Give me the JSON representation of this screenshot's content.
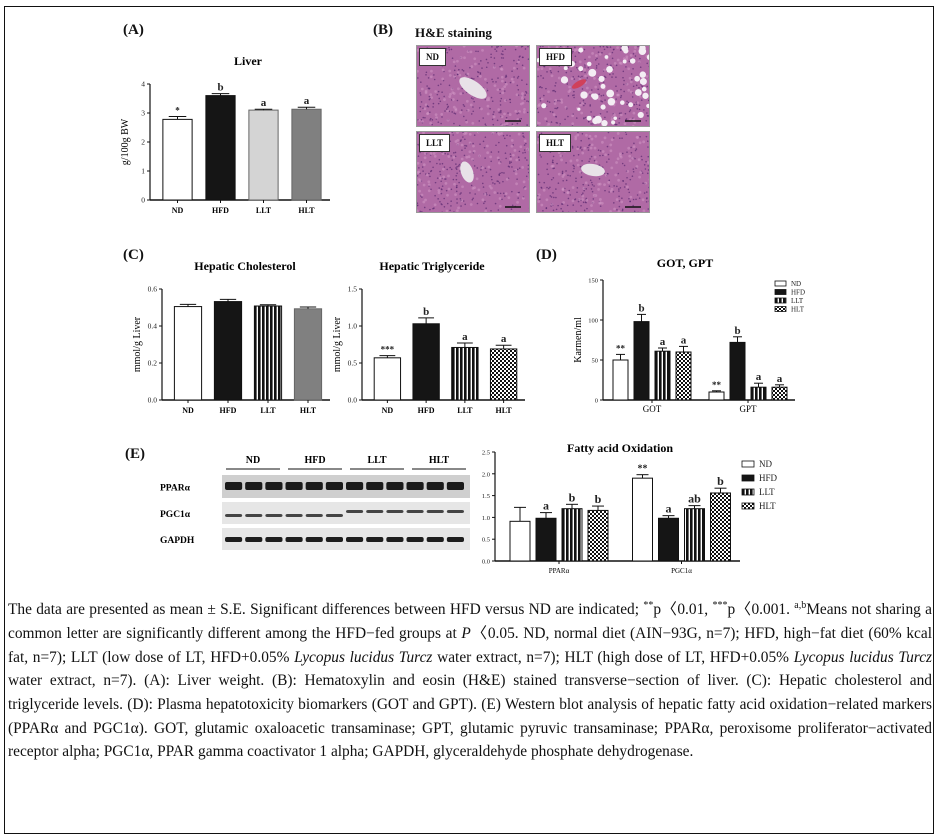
{
  "figure": {
    "panel_A": {
      "label": "(A)"
    },
    "panel_B": {
      "label": "(B)",
      "title": "H&E staining",
      "images": [
        {
          "tag": "ND"
        },
        {
          "tag": "HFD"
        },
        {
          "tag": "LLT"
        },
        {
          "tag": "HLT"
        }
      ]
    },
    "panel_C": {
      "label": "(C)"
    },
    "panel_D": {
      "label": "(D)"
    },
    "panel_E": {
      "label": "(E)",
      "blot_groups": [
        "ND",
        "HFD",
        "LLT",
        "HLT"
      ],
      "blot_rows": [
        "PPARα",
        "PGC1α",
        "GAPDH"
      ]
    }
  },
  "chart_data": [
    {
      "id": "A",
      "type": "bar",
      "title": "Liver",
      "xlabel": "",
      "ylabel": "g/100g BW",
      "ylim": [
        0,
        4
      ],
      "yticks": [
        "0",
        "1",
        "2",
        "3",
        "4"
      ],
      "categories": [
        "ND",
        "HFD",
        "LLT",
        "HLT"
      ],
      "values": [
        2.78,
        3.6,
        3.1,
        3.13
      ],
      "errors": [
        0.1,
        0.07,
        0.03,
        0.07
      ],
      "annotations": [
        "*",
        "b",
        "a",
        "a"
      ],
      "fills": [
        "white",
        "black",
        "lightgray",
        "gray"
      ]
    },
    {
      "id": "C1",
      "type": "bar",
      "title": "Hepatic Cholesterol",
      "xlabel": "",
      "ylabel": "mmol/g Liver",
      "ylim": [
        0,
        0.6
      ],
      "yticks": [
        "0.0",
        "0.2",
        "0.4",
        "0.6"
      ],
      "categories": [
        "ND",
        "HFD",
        "LLT",
        "HLT"
      ],
      "values": [
        0.505,
        0.532,
        0.508,
        0.493
      ],
      "errors": [
        0.012,
        0.012,
        0.007,
        0.01
      ],
      "annotations": [
        "",
        "",
        "",
        ""
      ],
      "fills": [
        "white",
        "black",
        "stripes",
        "gray"
      ]
    },
    {
      "id": "C2",
      "type": "bar",
      "title": "Hepatic Triglyceride",
      "xlabel": "",
      "ylabel": "mmol/g Liver",
      "ylim": [
        0,
        1.5
      ],
      "yticks": [
        "0.0",
        "0.5",
        "1.0",
        "1.5"
      ],
      "categories": [
        "ND",
        "HFD",
        "LLT",
        "HLT"
      ],
      "values": [
        0.57,
        1.03,
        0.71,
        0.69
      ],
      "errors": [
        0.03,
        0.08,
        0.06,
        0.05
      ],
      "annotations": [
        "***",
        "b",
        "a",
        "a"
      ],
      "fills": [
        "white",
        "black",
        "stripes",
        "checker"
      ]
    },
    {
      "id": "D",
      "type": "bar",
      "title": "GOT, GPT",
      "xlabel": "",
      "ylabel": "Karmen/ml",
      "ylim": [
        0,
        150
      ],
      "yticks": [
        "0",
        "50",
        "100",
        "150"
      ],
      "categories": [
        "GOT",
        "GPT"
      ],
      "series": [
        {
          "name": "ND",
          "values": [
            50,
            10
          ],
          "errors": [
            7,
            1.5
          ],
          "annotations": [
            "**",
            "**"
          ],
          "fill": "white"
        },
        {
          "name": "HFD",
          "values": [
            98,
            72
          ],
          "errors": [
            9,
            7
          ],
          "annotations": [
            "b",
            "b"
          ],
          "fill": "black"
        },
        {
          "name": "LLT",
          "values": [
            61,
            16
          ],
          "errors": [
            4,
            5
          ],
          "annotations": [
            "a",
            "a"
          ],
          "fill": "stripes"
        },
        {
          "name": "HLT",
          "values": [
            60,
            16
          ],
          "errors": [
            7,
            3
          ],
          "annotations": [
            "a",
            "a"
          ],
          "fill": "checker"
        }
      ],
      "legend_position": "upper right"
    },
    {
      "id": "E",
      "type": "bar",
      "title": "Fatty acid Oxidation",
      "xlabel": "",
      "ylabel": "",
      "ylim": [
        0,
        2.5
      ],
      "yticks": [
        "0.0",
        "0.5",
        "1.0",
        "1.5",
        "2.0",
        "2.5"
      ],
      "categories": [
        "PPARα",
        "PGC1α"
      ],
      "series": [
        {
          "name": "ND",
          "values": [
            0.91,
            1.9
          ],
          "errors": [
            0.32,
            0.08
          ],
          "annotations": [
            "",
            "**"
          ],
          "fill": "white"
        },
        {
          "name": "HFD",
          "values": [
            0.98,
            0.98
          ],
          "errors": [
            0.13,
            0.06
          ],
          "annotations": [
            "a",
            "a"
          ],
          "fill": "black"
        },
        {
          "name": "LLT",
          "values": [
            1.2,
            1.2
          ],
          "errors": [
            0.1,
            0.07
          ],
          "annotations": [
            "b",
            "ab"
          ],
          "fill": "stripes"
        },
        {
          "name": "HLT",
          "values": [
            1.16,
            1.56
          ],
          "errors": [
            0.1,
            0.11
          ],
          "annotations": [
            "b",
            "b"
          ],
          "fill": "checker"
        }
      ],
      "legend_position": "right"
    }
  ],
  "caption": {
    "parts": [
      {
        "t": "The data are presented as mean ± S.E. Significant differences between HFD versus ND are indicated; "
      },
      {
        "sup": "**"
      },
      {
        "t": "p〈0.01, "
      },
      {
        "sup": "***"
      },
      {
        "t": "p〈0.001. "
      },
      {
        "sup": "a,b"
      },
      {
        "t": "Means not sharing a common letter are significantly different among the HFD−fed groups at "
      },
      {
        "i": "P"
      },
      {
        "t": "〈0.05. ND, normal diet (AIN−93G, n=7); HFD, high−fat diet (60% kcal fat, n=7); LLT (low dose of LT, HFD+0.05% "
      },
      {
        "i": "Lycopus lucidus Turcz"
      },
      {
        "t": " water extract, n=7); HLT (high dose of LT, HFD+0.05% "
      },
      {
        "i": "Lycopus lucidus Turcz"
      },
      {
        "t": " water extract, n=7). (A): Liver weight. (B): Hematoxylin and eosin (H&E) stained transverse−section of liver. (C): Hepatic cholesterol and triglyceride levels. (D): Plasma hepatotoxicity biomarkers (GOT and GPT). (E) Western blot analysis of hepatic fatty acid oxidation−related markers (PPARα and PGC1α). GOT, glutamic oxaloacetic transaminase; GPT, glutamic pyruvic transaminase; PPARα, peroxisome proliferator−activated receptor alpha; PGC1α, PPAR gamma coactivator 1 alpha; GAPDH, glyceraldehyde phosphate dehydrogenase."
      }
    ]
  }
}
